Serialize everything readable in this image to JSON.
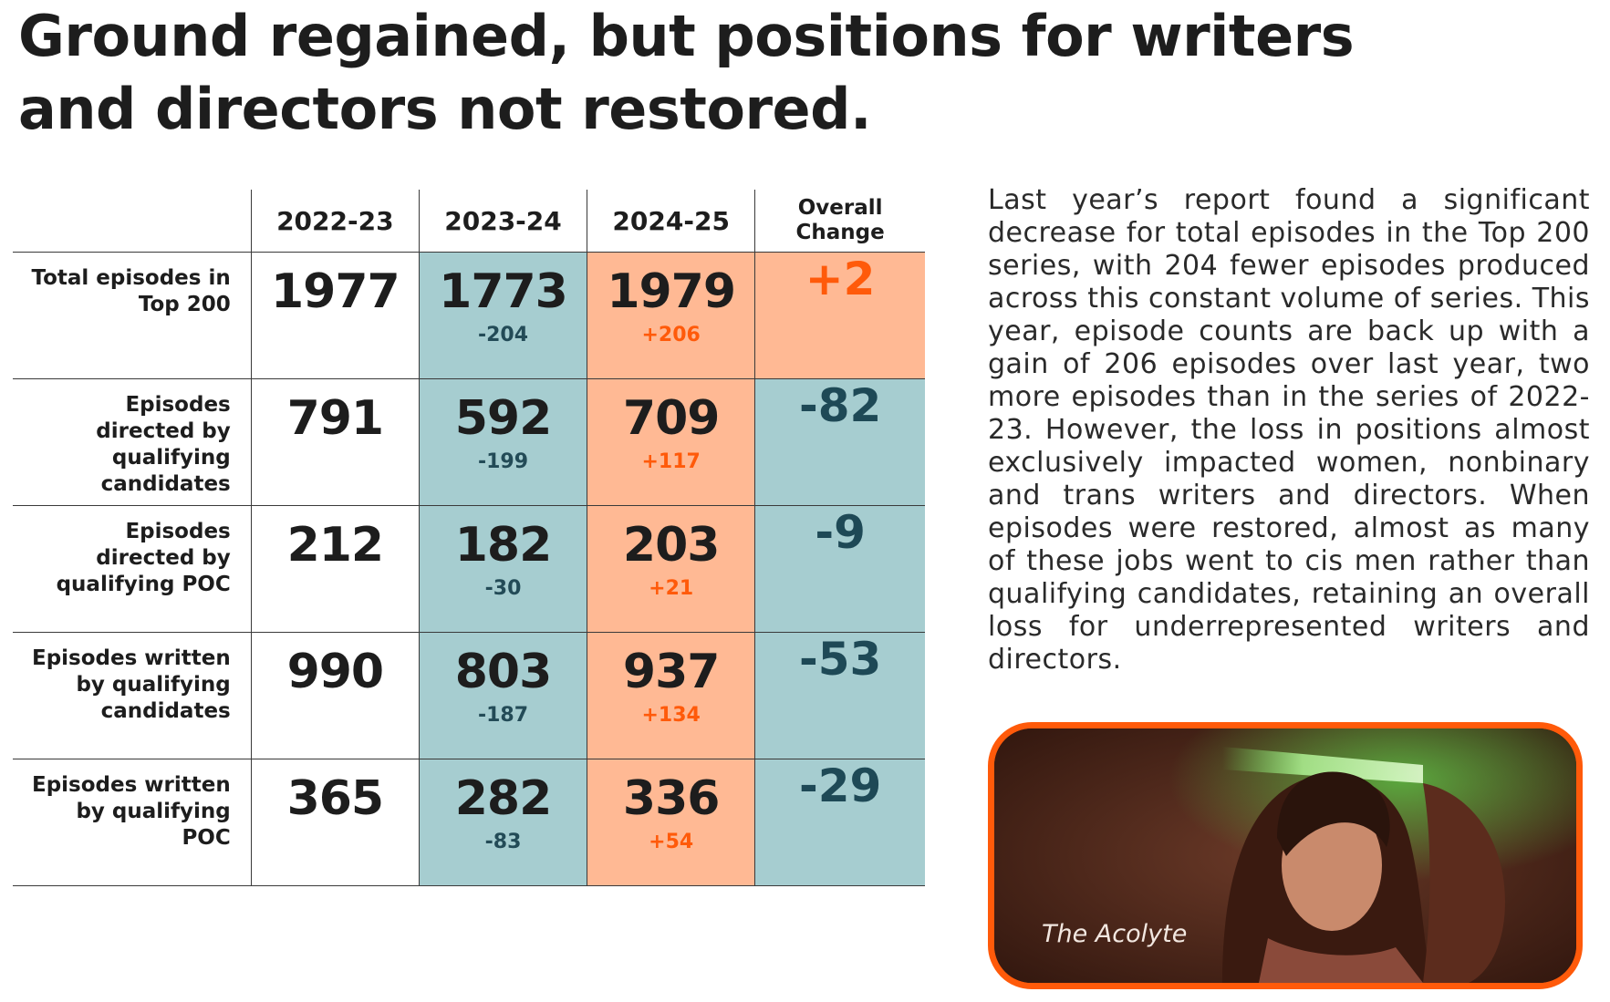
{
  "title": "Ground regained, but positions for writers and directors not restored.",
  "table": {
    "headers": [
      "",
      "2022-23",
      "2023-24",
      "2024-25",
      "Overall Change"
    ],
    "overall_header_line1": "Overall",
    "overall_header_line2": "Change",
    "rows": [
      {
        "label": "Total episodes in Top 200",
        "v2223": "1977",
        "v2324": "1773",
        "d2324": "-204",
        "v2425": "1979",
        "d2425": "+206",
        "overall": "+2"
      },
      {
        "label": "Episodes directed by qualifying candidates",
        "v2223": "791",
        "v2324": "592",
        "d2324": "-199",
        "v2425": "709",
        "d2425": "+117",
        "overall": "-82"
      },
      {
        "label": "Episodes directed by qualifying POC",
        "v2223": "212",
        "v2324": "182",
        "d2324": "-30",
        "v2425": "203",
        "d2425": "+21",
        "overall": "-9"
      },
      {
        "label": "Episodes written by qualifying candidates",
        "v2223": "990",
        "v2324": "803",
        "d2324": "-187",
        "v2425": "937",
        "d2425": "+134",
        "overall": "-53"
      },
      {
        "label": "Episodes written by qualifying POC",
        "v2223": "365",
        "v2324": "282",
        "d2324": "-83",
        "v2425": "336",
        "d2425": "+54",
        "overall": "-29"
      }
    ]
  },
  "body": "Last year’s report found a significant decrease for total episodes in the Top 200 series, with 204 fewer episodes produced across this constant volume of series. This year, episode counts are back up with a gain of 206 episodes over last year, two more episodes than in the series of 2022- 23. However, the loss in positions almost exclusively impacted women, nonbinary and trans writers and directors. When episodes were restored, almost as many of these jobs went to cis men rather than qualifying candidates, retaining an overall loss for underrepresented writers and directors.",
  "photo": {
    "caption": "The Acolyte"
  },
  "colors": {
    "teal": "#a6cdd0",
    "orange": "#ffb994",
    "accent_orange": "#ff5a0a",
    "dark_teal": "#1e4956"
  }
}
